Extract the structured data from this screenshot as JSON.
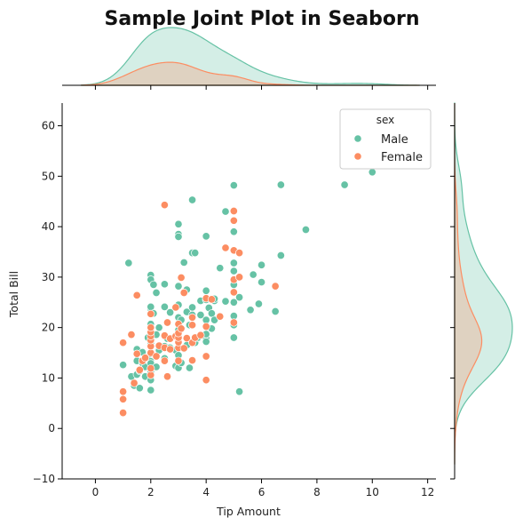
{
  "chart_data": {
    "type": "scatter",
    "title": "Sample Joint Plot in Seaborn",
    "xlabel": "Tip Amount",
    "ylabel": "Total Bill",
    "xlim": [
      -1.2,
      12.3
    ],
    "ylim": [
      -10,
      64.5
    ],
    "xticks": [
      0,
      2,
      4,
      6,
      8,
      10,
      12
    ],
    "yticks": [
      -10,
      0,
      10,
      20,
      30,
      40,
      50,
      60
    ],
    "grid": false,
    "legend": {
      "title": "sex",
      "placement": "top-right"
    },
    "marginals": {
      "top": "kde",
      "right": "kde"
    },
    "series": [
      {
        "name": "Male",
        "color": "#66c2a5",
        "points": [
          [
            1.0,
            12.6
          ],
          [
            1.2,
            32.8
          ],
          [
            1.3,
            10.3
          ],
          [
            1.4,
            8.5
          ],
          [
            1.5,
            10.7
          ],
          [
            1.5,
            13.4
          ],
          [
            1.5,
            15.7
          ],
          [
            1.6,
            11.4
          ],
          [
            1.6,
            8.0
          ],
          [
            1.7,
            13.0
          ],
          [
            1.7,
            15.1
          ],
          [
            1.8,
            10.3
          ],
          [
            1.8,
            12.2
          ],
          [
            1.9,
            14.1
          ],
          [
            1.9,
            18.0
          ],
          [
            2.0,
            13.3
          ],
          [
            2.0,
            16.9
          ],
          [
            2.0,
            20.7
          ],
          [
            2.0,
            23.7
          ],
          [
            2.0,
            24.1
          ],
          [
            2.0,
            30.4
          ],
          [
            2.0,
            29.5
          ],
          [
            2.0,
            11.2
          ],
          [
            2.0,
            12.9
          ],
          [
            2.0,
            7.6
          ],
          [
            2.0,
            9.6
          ],
          [
            2.1,
            22.8
          ],
          [
            2.1,
            28.5
          ],
          [
            2.2,
            12.2
          ],
          [
            2.2,
            18.6
          ],
          [
            2.2,
            26.9
          ],
          [
            2.3,
            15.5
          ],
          [
            2.3,
            20.0
          ],
          [
            2.5,
            16.3
          ],
          [
            2.5,
            13.9
          ],
          [
            2.5,
            18.3
          ],
          [
            2.5,
            24.1
          ],
          [
            2.5,
            28.6
          ],
          [
            2.6,
            17.8
          ],
          [
            2.7,
            16.0
          ],
          [
            2.7,
            23.0
          ],
          [
            2.9,
            12.4
          ],
          [
            2.9,
            15.5
          ],
          [
            3.0,
            12.0
          ],
          [
            3.0,
            14.5
          ],
          [
            3.0,
            16.0
          ],
          [
            3.0,
            18.5
          ],
          [
            3.0,
            19.5
          ],
          [
            3.0,
            22.0
          ],
          [
            3.0,
            24.5
          ],
          [
            3.0,
            38.5
          ],
          [
            3.0,
            40.5
          ],
          [
            3.0,
            28.2
          ],
          [
            3.0,
            38.0
          ],
          [
            3.1,
            13.0
          ],
          [
            3.1,
            21.5
          ],
          [
            3.2,
            15.8
          ],
          [
            3.2,
            32.9
          ],
          [
            3.3,
            16.5
          ],
          [
            3.3,
            23.1
          ],
          [
            3.3,
            27.5
          ],
          [
            3.4,
            12.0
          ],
          [
            3.4,
            20.5
          ],
          [
            3.5,
            24.0
          ],
          [
            3.5,
            34.8
          ],
          [
            3.5,
            45.3
          ],
          [
            3.5,
            22.5
          ],
          [
            3.6,
            17.0
          ],
          [
            3.6,
            34.8
          ],
          [
            3.7,
            18.0
          ],
          [
            3.8,
            22.5
          ],
          [
            3.8,
            25.3
          ],
          [
            3.9,
            18.5
          ],
          [
            4.0,
            17.9
          ],
          [
            4.0,
            21.5
          ],
          [
            4.0,
            25.5
          ],
          [
            4.0,
            27.3
          ],
          [
            4.0,
            17.2
          ],
          [
            4.0,
            38.1
          ],
          [
            4.0,
            18.7
          ],
          [
            4.1,
            23.9
          ],
          [
            4.2,
            19.8
          ],
          [
            4.2,
            22.8
          ],
          [
            4.3,
            21.5
          ],
          [
            4.3,
            25.3
          ],
          [
            4.3,
            25.7
          ],
          [
            4.5,
            31.8
          ],
          [
            4.7,
            25.2
          ],
          [
            4.7,
            43.0
          ],
          [
            5.0,
            18.0
          ],
          [
            5.0,
            20.5
          ],
          [
            5.0,
            22.3
          ],
          [
            5.0,
            25.0
          ],
          [
            5.0,
            28.5
          ],
          [
            5.0,
            31.2
          ],
          [
            5.0,
            32.8
          ],
          [
            5.0,
            48.2
          ],
          [
            5.0,
            39.0
          ],
          [
            5.2,
            26.0
          ],
          [
            5.2,
            7.3
          ],
          [
            5.6,
            23.5
          ],
          [
            5.7,
            30.5
          ],
          [
            5.9,
            24.7
          ],
          [
            6.0,
            29.0
          ],
          [
            6.0,
            32.4
          ],
          [
            6.5,
            23.2
          ],
          [
            6.7,
            34.3
          ],
          [
            6.7,
            48.3
          ],
          [
            7.6,
            39.4
          ],
          [
            9.0,
            48.3
          ],
          [
            10.0,
            50.8
          ]
        ]
      },
      {
        "name": "Female",
        "color": "#fc8d62",
        "points": [
          [
            1.0,
            3.1
          ],
          [
            1.0,
            5.8
          ],
          [
            1.0,
            7.3
          ],
          [
            1.0,
            17.0
          ],
          [
            1.3,
            18.6
          ],
          [
            1.4,
            9.0
          ],
          [
            1.5,
            26.4
          ],
          [
            1.5,
            14.8
          ],
          [
            1.6,
            11.6
          ],
          [
            1.7,
            13.4
          ],
          [
            1.8,
            14.0
          ],
          [
            2.0,
            10.6
          ],
          [
            2.0,
            11.9
          ],
          [
            2.0,
            15.0
          ],
          [
            2.0,
            16.3
          ],
          [
            2.0,
            17.5
          ],
          [
            2.0,
            18.3
          ],
          [
            2.0,
            19.1
          ],
          [
            2.0,
            20.0
          ],
          [
            2.0,
            22.7
          ],
          [
            2.2,
            14.3
          ],
          [
            2.3,
            16.4
          ],
          [
            2.5,
            44.3
          ],
          [
            2.5,
            13.4
          ],
          [
            2.5,
            16.0
          ],
          [
            2.5,
            18.4
          ],
          [
            2.6,
            10.3
          ],
          [
            2.6,
            21.0
          ],
          [
            2.7,
            15.7
          ],
          [
            2.7,
            17.8
          ],
          [
            2.9,
            18.3
          ],
          [
            2.9,
            24.0
          ],
          [
            3.0,
            13.4
          ],
          [
            3.0,
            16.0
          ],
          [
            3.0,
            17.1
          ],
          [
            3.0,
            18.0
          ],
          [
            3.0,
            18.9
          ],
          [
            3.0,
            20.7
          ],
          [
            3.1,
            19.8
          ],
          [
            3.1,
            29.9
          ],
          [
            3.2,
            15.9
          ],
          [
            3.2,
            26.9
          ],
          [
            3.3,
            17.9
          ],
          [
            3.5,
            17.0
          ],
          [
            3.5,
            20.5
          ],
          [
            3.5,
            22.0
          ],
          [
            3.5,
            13.5
          ],
          [
            3.6,
            18.0
          ],
          [
            3.8,
            18.5
          ],
          [
            4.0,
            9.6
          ],
          [
            4.0,
            14.3
          ],
          [
            4.0,
            20.2
          ],
          [
            4.0,
            25.8
          ],
          [
            4.2,
            25.6
          ],
          [
            4.5,
            22.2
          ],
          [
            4.7,
            35.8
          ],
          [
            5.0,
            21.0
          ],
          [
            5.0,
            27.0
          ],
          [
            5.0,
            29.5
          ],
          [
            5.0,
            35.3
          ],
          [
            5.0,
            41.2
          ],
          [
            5.0,
            43.1
          ],
          [
            5.2,
            30.0
          ],
          [
            5.2,
            34.8
          ],
          [
            6.5,
            28.2
          ]
        ]
      }
    ]
  }
}
